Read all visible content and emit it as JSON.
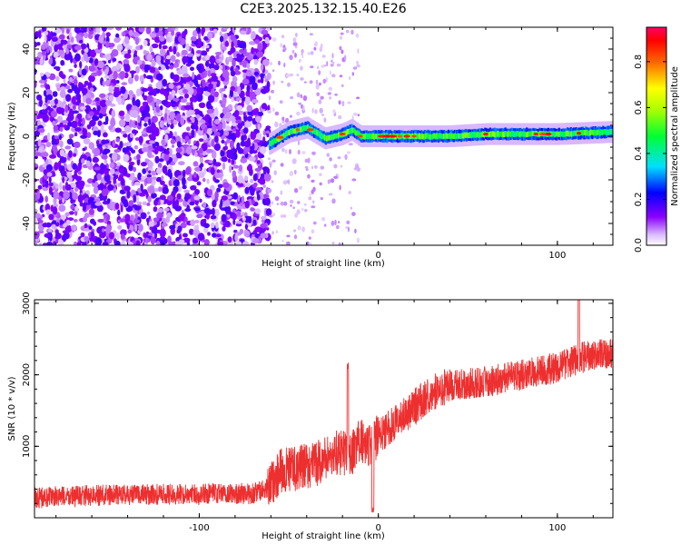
{
  "chart_data": [
    {
      "type": "heatmap",
      "title": "C2E3.2025.132.15.40.E26",
      "xlabel": "Height of straight line (km)",
      "ylabel": "Frequency (Hz)",
      "xlim": [
        -192,
        131
      ],
      "ylim": [
        -50,
        50
      ],
      "xticks": [
        -100,
        0,
        100
      ],
      "xtick_labels": [
        "-100",
        "0",
        "100"
      ],
      "yticks": [
        -40,
        -20,
        0,
        20,
        40
      ],
      "ytick_labels": [
        "-40",
        "-20",
        "0",
        "20",
        "40"
      ],
      "colorbar": {
        "label": "Normalized spectral amplitude",
        "range": [
          0,
          0.95
        ],
        "ticks": [
          0,
          0.2,
          0.4,
          0.6,
          0.8
        ],
        "tick_labels": [
          "0.0",
          "0.2",
          "0.4",
          "0.6",
          "0.8"
        ]
      },
      "regions": [
        {
          "x_range": [
            -192,
            -61
          ],
          "freq_range": [
            -50,
            50
          ],
          "amplitude": 0.12,
          "pattern": "scattered noise"
        },
        {
          "x_range": [
            -61,
            -15
          ],
          "freq_range": [
            -50,
            50
          ],
          "amplitude": 0.02,
          "pattern": "sparse noise"
        },
        {
          "x_range": [
            -61,
            131
          ],
          "freq_range": [
            -4,
            5
          ],
          "amplitude": 0.55,
          "pattern": "narrow band at ~1 Hz"
        }
      ],
      "band_center_freq": [
        {
          "x": -60,
          "f": -3
        },
        {
          "x": -50,
          "f": 2
        },
        {
          "x": -40,
          "f": 4
        },
        {
          "x": -30,
          "f": -1
        },
        {
          "x": -20,
          "f": 1
        },
        {
          "x": -15,
          "f": 3
        },
        {
          "x": -10,
          "f": 0
        },
        {
          "x": 0,
          "f": 0
        },
        {
          "x": 20,
          "f": 0
        },
        {
          "x": 40,
          "f": 0
        },
        {
          "x": 60,
          "f": 1
        },
        {
          "x": 80,
          "f": 1
        },
        {
          "x": 100,
          "f": 1
        },
        {
          "x": 131,
          "f": 2
        }
      ],
      "colors": [
        "#ffffff",
        "#8a00ff",
        "#0000ff",
        "#00dfff",
        "#00ff00",
        "#ffff00",
        "#ff0000",
        "#ff0066"
      ]
    },
    {
      "type": "line",
      "xlabel": "Height of straight line (km)",
      "ylabel": "SNR (10 * v/v)",
      "xlim": [
        -192,
        131
      ],
      "ylim": [
        0,
        3050
      ],
      "xticks": [
        -100,
        0,
        100
      ],
      "xtick_labels": [
        "-100",
        "0",
        "100"
      ],
      "yticks": [
        1000,
        2000,
        3000
      ],
      "ytick_labels": [
        "1000",
        "2000",
        "3000"
      ],
      "series": [
        {
          "color": "#ee2f2f",
          "x": [
            -192,
            -150,
            -100,
            -70,
            -62,
            -55,
            -45,
            -35,
            -25,
            -15,
            -10,
            -5,
            0,
            10,
            20,
            30,
            40,
            60,
            80,
            100,
            115,
            131
          ],
          "y": [
            280,
            320,
            330,
            340,
            400,
            650,
            700,
            750,
            900,
            900,
            1100,
            1000,
            1150,
            1350,
            1550,
            1750,
            1850,
            1900,
            2000,
            2100,
            2250,
            2300
          ]
        }
      ],
      "annotations": [
        {
          "x": -17,
          "y": 2200,
          "text": "spike"
        },
        {
          "x": 112,
          "y": 3050,
          "text": "peak"
        }
      ]
    }
  ]
}
